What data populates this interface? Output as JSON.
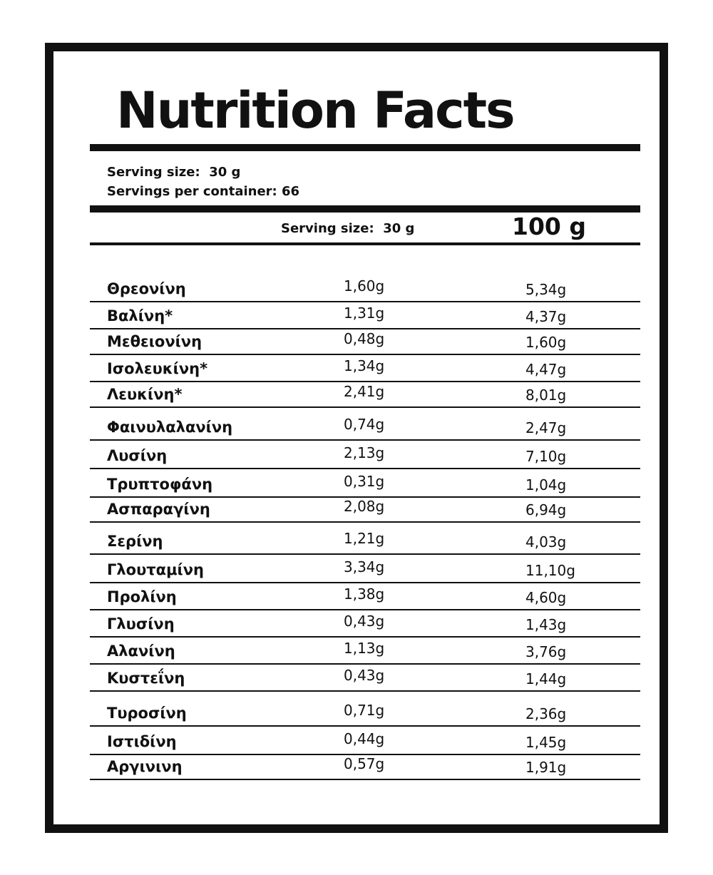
{
  "label": {
    "title": "Nutrition Facts",
    "serving_size": "Serving size:  30 g",
    "servings_per_container": "Servings per container: 66",
    "header": {
      "per_serving": "Serving size:  30 g",
      "per_100": "100 g"
    },
    "rows": [
      {
        "name": "Θρεονίνη",
        "per_serving": "1,60g",
        "per_100": "5,34g"
      },
      {
        "name": "Βαλίνη*",
        "per_serving": "1,31g",
        "per_100": "4,37g"
      },
      {
        "name": "Μεθειονίνη",
        "per_serving": "0,48g",
        "per_100": "1,60g"
      },
      {
        "name": "Ισολευκίνη*",
        "per_serving": "1,34g",
        "per_100": "4,47g"
      },
      {
        "name": "Λευκίνη*",
        "per_serving": "2,41g",
        "per_100": "8,01g"
      },
      {
        "name": "Φαινυλαλανίνη",
        "per_serving": "0,74g",
        "per_100": "2,47g"
      },
      {
        "name": "Λυσίνη",
        "per_serving": "2,13g",
        "per_100": "7,10g"
      },
      {
        "name": "Τρυπτοφάνη",
        "per_serving": "0,31g",
        "per_100": "1,04g"
      },
      {
        "name": "Ασπαραγίνη",
        "per_serving": "2,08g",
        "per_100": "6,94g"
      },
      {
        "name": "Σερίνη",
        "per_serving": "1,21g",
        "per_100": "4,03g"
      },
      {
        "name": "Γλουταμίνη",
        "per_serving": "3,34g",
        "per_100": "11,10g"
      },
      {
        "name": "Προλίνη",
        "per_serving": "1,38g",
        "per_100": "4,60g"
      },
      {
        "name": "Γλυσίνη",
        "per_serving": "0,43g",
        "per_100": "1,43g"
      },
      {
        "name": "Αλανίνη",
        "per_serving": "1,13g",
        "per_100": "3,76g"
      },
      {
        "name": "Κυστεΐνη",
        "per_serving": "0,43g",
        "per_100": "1,44g"
      },
      {
        "name": "Τυροσίνη",
        "per_serving": "0,71g",
        "per_100": "2,36g"
      },
      {
        "name": "Ιστιδίνη",
        "per_serving": "0,44g",
        "per_100": "1,45g"
      },
      {
        "name": "Αργινινη",
        "per_serving": "0,57g",
        "per_100": "1,91g"
      }
    ]
  }
}
